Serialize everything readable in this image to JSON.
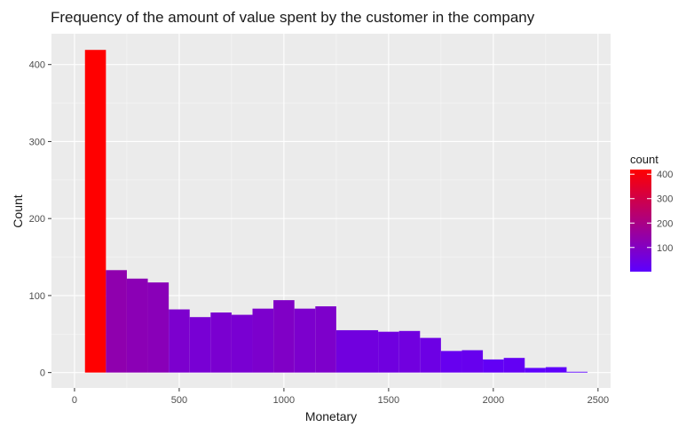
{
  "chart_data": {
    "type": "bar",
    "title": "Frequency of the amount of value spent by the customer in the company",
    "xlabel": "Monetary",
    "ylabel": "Count",
    "xlim": [
      -110,
      2560
    ],
    "ylim": [
      -20,
      440
    ],
    "x_ticks": [
      0,
      500,
      1000,
      1500,
      2000,
      2500
    ],
    "y_ticks": [
      0,
      100,
      200,
      300,
      400
    ],
    "bin_width": 100,
    "bins": [
      {
        "x": 100,
        "count": 419
      },
      {
        "x": 200,
        "count": 133
      },
      {
        "x": 300,
        "count": 122
      },
      {
        "x": 400,
        "count": 117
      },
      {
        "x": 500,
        "count": 82
      },
      {
        "x": 600,
        "count": 72
      },
      {
        "x": 700,
        "count": 78
      },
      {
        "x": 800,
        "count": 75
      },
      {
        "x": 900,
        "count": 83
      },
      {
        "x": 1000,
        "count": 94
      },
      {
        "x": 1100,
        "count": 83
      },
      {
        "x": 1200,
        "count": 86
      },
      {
        "x": 1300,
        "count": 55
      },
      {
        "x": 1400,
        "count": 55
      },
      {
        "x": 1500,
        "count": 53
      },
      {
        "x": 1600,
        "count": 54
      },
      {
        "x": 1700,
        "count": 45
      },
      {
        "x": 1800,
        "count": 28
      },
      {
        "x": 1900,
        "count": 29
      },
      {
        "x": 2000,
        "count": 17
      },
      {
        "x": 2100,
        "count": 19
      },
      {
        "x": 2200,
        "count": 6
      },
      {
        "x": 2300,
        "count": 7
      },
      {
        "x": 2400,
        "count": 1
      }
    ],
    "legend": {
      "title": "count",
      "ticks": [
        100,
        200,
        300,
        400
      ],
      "range": [
        1,
        419
      ],
      "low_color": "#5c00ff",
      "high_color": "#ff0000",
      "placement": "right"
    },
    "colors": {
      "panel": "#ebebeb",
      "grid_major": "#ffffff",
      "text": "#1a1a1a",
      "tick_text": "#4d4d4d"
    },
    "grid": true
  }
}
